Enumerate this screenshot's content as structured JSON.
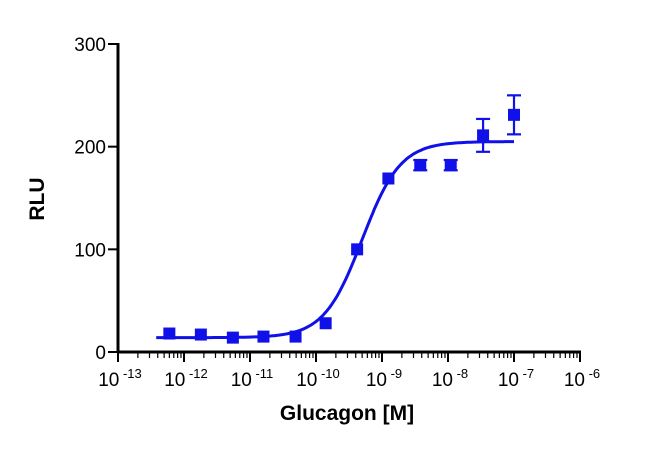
{
  "chart_data": {
    "type": "scatter",
    "xlabel": "Glucagon [M]",
    "ylabel": "RLU",
    "x_scale": "log",
    "xlim": [
      1e-13,
      1e-06
    ],
    "ylim": [
      0,
      300
    ],
    "x_tick_labels": [
      {
        "base": "10",
        "exp": "-13"
      },
      {
        "base": "10",
        "exp": "-12"
      },
      {
        "base": "10",
        "exp": "-11"
      },
      {
        "base": "10",
        "exp": "-10"
      },
      {
        "base": "10",
        "exp": "-9"
      },
      {
        "base": "10",
        "exp": "-8"
      },
      {
        "base": "10",
        "exp": "-7"
      },
      {
        "base": "10",
        "exp": "-6"
      }
    ],
    "y_ticks": [
      0,
      100,
      200,
      300
    ],
    "series": [
      {
        "color": "#1010e8",
        "marker": "square",
        "points": [
          {
            "x": 6e-13,
            "y": 18,
            "err": 0
          },
          {
            "x": 1.8e-12,
            "y": 17,
            "err": 0
          },
          {
            "x": 5.5e-12,
            "y": 14,
            "err": 0
          },
          {
            "x": 1.6e-11,
            "y": 15,
            "err": 0
          },
          {
            "x": 4.9e-11,
            "y": 15,
            "err": 0
          },
          {
            "x": 1.4e-10,
            "y": 28,
            "err": 0
          },
          {
            "x": 4.2e-10,
            "y": 100,
            "err": 0
          },
          {
            "x": 1.25e-09,
            "y": 169,
            "err": 0
          },
          {
            "x": 3.8e-09,
            "y": 182,
            "err": 5
          },
          {
            "x": 1.1e-08,
            "y": 182,
            "err": 5
          },
          {
            "x": 3.4e-08,
            "y": 211,
            "err": 16
          },
          {
            "x": 1e-07,
            "y": 231,
            "err": 19
          }
        ],
        "fit": {
          "model": "sigmoidal dose-response",
          "bottom": 14,
          "top": 205,
          "ec50": 5e-10,
          "hill": 1.5
        }
      }
    ]
  }
}
